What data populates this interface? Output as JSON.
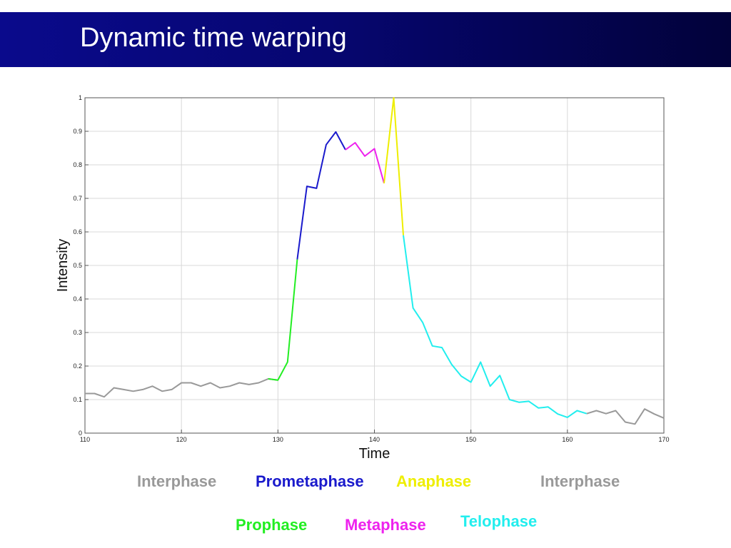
{
  "slide": {
    "title": "Dynamic time warping"
  },
  "chart_data": {
    "type": "line",
    "xlabel": "Time",
    "ylabel": "Intensity",
    "xlim": [
      110,
      170
    ],
    "ylim": [
      0,
      1
    ],
    "x_ticks": [
      "110",
      "120",
      "130",
      "140",
      "150",
      "160",
      "170"
    ],
    "y_ticks": [
      "0",
      "0.1",
      "0.2",
      "0.3",
      "0.4",
      "0.5",
      "0.6",
      "0.7",
      "0.8",
      "0.9",
      "1"
    ],
    "grid": true,
    "series": [
      {
        "name": "Interphase",
        "color": "#999999",
        "x": [
          110,
          111,
          112,
          113,
          114,
          115,
          116,
          117,
          118,
          119,
          120,
          121,
          122,
          123,
          124,
          125,
          126,
          127,
          128,
          129,
          130
        ],
        "y": [
          0.118,
          0.118,
          0.108,
          0.135,
          0.13,
          0.125,
          0.13,
          0.14,
          0.125,
          0.13,
          0.15,
          0.15,
          0.14,
          0.15,
          0.135,
          0.14,
          0.15,
          0.145,
          0.15,
          0.162,
          0.158
        ]
      },
      {
        "name": "Prophase",
        "color": "#22ee22",
        "x": [
          129,
          130,
          131,
          132
        ],
        "y": [
          0.162,
          0.158,
          0.212,
          0.518
        ]
      },
      {
        "name": "Prometaphase",
        "color": "#1a1acc",
        "x": [
          132,
          133,
          134,
          135,
          136,
          137
        ],
        "y": [
          0.518,
          0.736,
          0.73,
          0.86,
          0.898,
          0.845
        ]
      },
      {
        "name": "Metaphase",
        "color": "#ee22ee",
        "x": [
          137,
          138,
          139,
          140,
          141
        ],
        "y": [
          0.845,
          0.866,
          0.826,
          0.848,
          0.745
        ]
      },
      {
        "name": "Anaphase",
        "color": "#eeee00",
        "x": [
          141,
          142,
          143
        ],
        "y": [
          0.745,
          1.0,
          0.59
        ]
      },
      {
        "name": "Telophase",
        "color": "#22eeee",
        "x": [
          143,
          144,
          145,
          146,
          147,
          148,
          149,
          150,
          151,
          152,
          153,
          154,
          155,
          156,
          157,
          158,
          159,
          160,
          161,
          162
        ],
        "y": [
          0.59,
          0.373,
          0.33,
          0.26,
          0.255,
          0.205,
          0.17,
          0.152,
          0.212,
          0.14,
          0.172,
          0.1,
          0.092,
          0.095,
          0.075,
          0.078,
          0.057,
          0.047,
          0.067,
          0.058
        ]
      },
      {
        "name": "Interphase",
        "color": "#999999",
        "x": [
          162,
          163,
          164,
          165,
          166,
          167,
          168,
          169,
          170
        ],
        "y": [
          0.058,
          0.067,
          0.058,
          0.067,
          0.033,
          0.027,
          0.072,
          0.057,
          0.045
        ]
      }
    ]
  },
  "phase_labels": {
    "interphase_left": "Interphase",
    "prometaphase": "Prometaphase",
    "anaphase": "Anaphase",
    "interphase_right": "Interphase",
    "prophase": "Prophase",
    "metaphase": "Metaphase",
    "telophase": "Telophase"
  },
  "colors": {
    "interphase": "#999999",
    "prophase": "#22ee22",
    "prometaphase": "#1a1acc",
    "metaphase": "#ee22ee",
    "anaphase": "#eeee00",
    "telophase": "#22eeee",
    "title_bar": "#06066e"
  }
}
